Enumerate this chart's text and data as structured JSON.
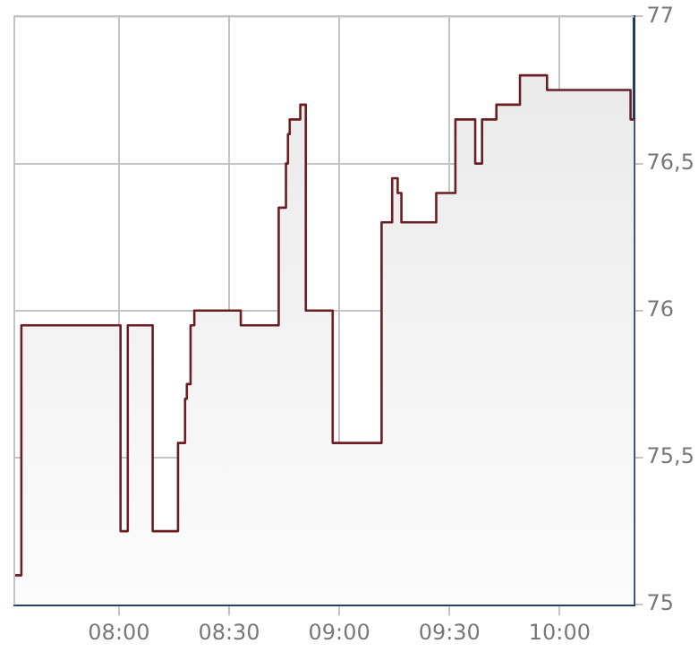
{
  "chart_data": {
    "type": "area",
    "x": [
      7.525,
      7.557,
      7.557,
      8.007,
      8.007,
      8.04,
      8.04,
      8.153,
      8.153,
      8.268,
      8.268,
      8.3,
      8.3,
      8.308,
      8.308,
      8.325,
      8.325,
      8.342,
      8.342,
      8.553,
      8.553,
      8.725,
      8.725,
      8.758,
      8.758,
      8.767,
      8.767,
      8.775,
      8.775,
      8.823,
      8.823,
      8.848,
      8.848,
      8.97,
      8.97,
      9.192,
      9.192,
      9.24,
      9.24,
      9.265,
      9.265,
      9.282,
      9.282,
      9.44,
      9.44,
      9.527,
      9.527,
      9.617,
      9.617,
      9.648,
      9.648,
      9.713,
      9.713,
      9.82,
      9.82,
      9.943,
      9.943,
      10.322,
      10.322,
      10.338
    ],
    "series": [
      {
        "color": "#6b1f24",
        "values": [
          75.1,
          75.1,
          75.95,
          75.95,
          75.25,
          75.25,
          75.95,
          75.95,
          75.25,
          75.25,
          75.55,
          75.55,
          75.7,
          75.7,
          75.75,
          75.75,
          75.95,
          75.95,
          76.0,
          76.0,
          75.95,
          75.95,
          76.35,
          76.35,
          76.5,
          76.5,
          76.6,
          76.6,
          76.65,
          76.65,
          76.7,
          76.7,
          76.0,
          76.0,
          75.55,
          75.55,
          76.3,
          76.3,
          76.45,
          76.45,
          76.4,
          76.4,
          76.3,
          76.3,
          76.4,
          76.4,
          76.65,
          76.65,
          76.5,
          76.5,
          76.65,
          76.65,
          76.7,
          76.7,
          76.8,
          76.8,
          76.75,
          76.75,
          76.65,
          76.65
        ]
      }
    ],
    "xlim": [
      7.525,
      10.338
    ],
    "xticks": [
      {
        "value": 8,
        "label": "08:00"
      },
      {
        "value": 8.5,
        "label": "08:30"
      },
      {
        "value": 9,
        "label": "09:00"
      },
      {
        "value": 9.5,
        "label": "09:30"
      },
      {
        "value": 10,
        "label": "10:00"
      }
    ],
    "ylim": [
      75,
      77
    ],
    "yticks": [
      75,
      {
        "value": 75.5,
        "label": "75,5"
      },
      76,
      {
        "value": 76.5,
        "label": "76,5"
      },
      77
    ],
    "grid": true,
    "legend": false,
    "marker": "none",
    "line_style": "solid"
  }
}
